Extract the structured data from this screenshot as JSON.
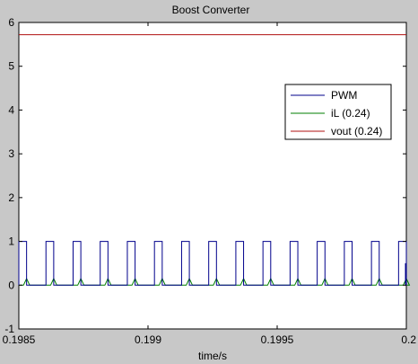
{
  "chart_data": {
    "type": "line",
    "title": "Boost Converter",
    "xlabel": "time/s",
    "ylabel": "",
    "xlim": [
      0.1985,
      0.2
    ],
    "ylim": [
      -1,
      6
    ],
    "xticks": [
      0.1985,
      0.199,
      0.1995,
      0.2
    ],
    "xtick_labels": [
      "0.1985",
      "0.199",
      "0.1995",
      "0.2"
    ],
    "yticks": [
      -1,
      0,
      1,
      2,
      3,
      4,
      5,
      6
    ],
    "ytick_labels": [
      "-1",
      "0",
      "1",
      "2",
      "3",
      "4",
      "5",
      "6"
    ],
    "grid": false,
    "legend_position": "top-right",
    "pwm": {
      "high": 1,
      "low": 0,
      "rise_times": [
        0.1985,
        0.198605,
        0.19871,
        0.198815,
        0.19892,
        0.199025,
        0.19913,
        0.199235,
        0.19934,
        0.199445,
        0.19955,
        0.199655,
        0.19976,
        0.199865,
        0.19997
      ],
      "pulse_width": 3e-05
    },
    "il": {
      "peak": 0.15,
      "ramp": 1.2e-05
    },
    "vout_level": 5.72,
    "series": [
      {
        "name": "PWM",
        "color": "#00008b"
      },
      {
        "name": "iL (0.24)",
        "color": "#007f00"
      },
      {
        "name": "vout (0.24)",
        "color": "#b01010"
      }
    ]
  }
}
